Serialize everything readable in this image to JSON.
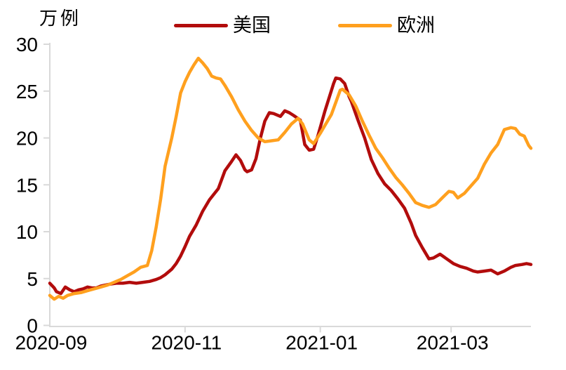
{
  "chart_data": {
    "type": "line",
    "title": "",
    "ylabel": "万例",
    "xlabel": "",
    "grid": false,
    "legend_position": "top",
    "axis_color": "#D9D9D9",
    "text_color": "#000000",
    "background_color": "#FFFFFF",
    "x_unit": "days since 2020-09-01",
    "xlim": [
      0,
      217
    ],
    "ylim": [
      0,
      30
    ],
    "y_ticks": [
      0,
      5,
      10,
      15,
      20,
      25,
      30
    ],
    "x_ticks": [
      {
        "day": 0,
        "label": "2020-09"
      },
      {
        "day": 61,
        "label": "2020-11"
      },
      {
        "day": 122,
        "label": "2021-01"
      },
      {
        "day": 181,
        "label": "2021-03"
      }
    ],
    "series": [
      {
        "name": "美国",
        "color": "#B20C0C",
        "points": [
          [
            0,
            4.5
          ],
          [
            2,
            4.0
          ],
          [
            3,
            3.6
          ],
          [
            5,
            3.4
          ],
          [
            7,
            4.1
          ],
          [
            9,
            3.8
          ],
          [
            11,
            3.6
          ],
          [
            13,
            3.8
          ],
          [
            15,
            3.9
          ],
          [
            17,
            4.1
          ],
          [
            19,
            4.0
          ],
          [
            21,
            4.0
          ],
          [
            23,
            4.2
          ],
          [
            25,
            4.3
          ],
          [
            27,
            4.4
          ],
          [
            30,
            4.5
          ],
          [
            33,
            4.5
          ],
          [
            36,
            4.6
          ],
          [
            39,
            4.5
          ],
          [
            42,
            4.6
          ],
          [
            45,
            4.7
          ],
          [
            48,
            4.9
          ],
          [
            50,
            5.1
          ],
          [
            52,
            5.4
          ],
          [
            55,
            6.0
          ],
          [
            57,
            6.6
          ],
          [
            59,
            7.4
          ],
          [
            61,
            8.4
          ],
          [
            63,
            9.5
          ],
          [
            66,
            10.7
          ],
          [
            69,
            12.2
          ],
          [
            72,
            13.4
          ],
          [
            76,
            14.6
          ],
          [
            79,
            16.5
          ],
          [
            82,
            17.5
          ],
          [
            84,
            18.2
          ],
          [
            86,
            17.6
          ],
          [
            88,
            16.6
          ],
          [
            89,
            16.4
          ],
          [
            91,
            16.6
          ],
          [
            93,
            17.8
          ],
          [
            95,
            20.0
          ],
          [
            97,
            21.8
          ],
          [
            99,
            22.7
          ],
          [
            101,
            22.6
          ],
          [
            104,
            22.3
          ],
          [
            106,
            22.9
          ],
          [
            108,
            22.7
          ],
          [
            110,
            22.4
          ],
          [
            113,
            21.9
          ],
          [
            115,
            19.3
          ],
          [
            117,
            18.7
          ],
          [
            119,
            18.8
          ],
          [
            121,
            20.3
          ],
          [
            124,
            22.8
          ],
          [
            126,
            24.3
          ],
          [
            128,
            25.8
          ],
          [
            129,
            26.4
          ],
          [
            131,
            26.3
          ],
          [
            133,
            25.8
          ],
          [
            135,
            24.4
          ],
          [
            136,
            23.9
          ],
          [
            139,
            21.9
          ],
          [
            142,
            20.0
          ],
          [
            145,
            17.7
          ],
          [
            148,
            16.2
          ],
          [
            151,
            15.1
          ],
          [
            154,
            14.4
          ],
          [
            157,
            13.5
          ],
          [
            160,
            12.5
          ],
          [
            163,
            10.9
          ],
          [
            165,
            9.6
          ],
          [
            168,
            8.3
          ],
          [
            171,
            7.1
          ],
          [
            173,
            7.2
          ],
          [
            176,
            7.6
          ],
          [
            179,
            7.1
          ],
          [
            182,
            6.6
          ],
          [
            185,
            6.3
          ],
          [
            188,
            6.1
          ],
          [
            191,
            5.8
          ],
          [
            193,
            5.7
          ],
          [
            196,
            5.8
          ],
          [
            199,
            5.9
          ],
          [
            202,
            5.5
          ],
          [
            205,
            5.8
          ],
          [
            208,
            6.2
          ],
          [
            210,
            6.4
          ],
          [
            213,
            6.5
          ],
          [
            215,
            6.6
          ],
          [
            217,
            6.5
          ]
        ]
      },
      {
        "name": "欧洲",
        "color": "#FFA01E",
        "points": [
          [
            0,
            3.2
          ],
          [
            2,
            2.8
          ],
          [
            4,
            3.1
          ],
          [
            6,
            2.9
          ],
          [
            8,
            3.2
          ],
          [
            11,
            3.4
          ],
          [
            14,
            3.5
          ],
          [
            17,
            3.7
          ],
          [
            20,
            3.9
          ],
          [
            23,
            4.1
          ],
          [
            26,
            4.3
          ],
          [
            29,
            4.6
          ],
          [
            32,
            4.9
          ],
          [
            35,
            5.3
          ],
          [
            38,
            5.7
          ],
          [
            41,
            6.2
          ],
          [
            44,
            6.4
          ],
          [
            46,
            8.0
          ],
          [
            48,
            10.5
          ],
          [
            50,
            13.5
          ],
          [
            52,
            17.0
          ],
          [
            55,
            20.0
          ],
          [
            57,
            22.3
          ],
          [
            59,
            24.8
          ],
          [
            61,
            26.0
          ],
          [
            63,
            27.0
          ],
          [
            65,
            27.8
          ],
          [
            67,
            28.5
          ],
          [
            69,
            28.0
          ],
          [
            71,
            27.4
          ],
          [
            73,
            26.6
          ],
          [
            75,
            26.4
          ],
          [
            77,
            26.3
          ],
          [
            79,
            25.6
          ],
          [
            82,
            24.4
          ],
          [
            85,
            23.0
          ],
          [
            88,
            21.8
          ],
          [
            91,
            20.8
          ],
          [
            94,
            20.0
          ],
          [
            97,
            19.6
          ],
          [
            100,
            19.7
          ],
          [
            103,
            19.8
          ],
          [
            106,
            20.6
          ],
          [
            109,
            21.5
          ],
          [
            112,
            22.1
          ],
          [
            114,
            21.5
          ],
          [
            117,
            19.8
          ],
          [
            119,
            19.4
          ],
          [
            122,
            20.5
          ],
          [
            124,
            21.3
          ],
          [
            127,
            22.5
          ],
          [
            129,
            23.8
          ],
          [
            131,
            25.1
          ],
          [
            132,
            25.2
          ],
          [
            135,
            24.6
          ],
          [
            138,
            23.4
          ],
          [
            141,
            21.8
          ],
          [
            144,
            20.3
          ],
          [
            147,
            18.9
          ],
          [
            150,
            17.9
          ],
          [
            153,
            16.8
          ],
          [
            156,
            15.8
          ],
          [
            159,
            15.0
          ],
          [
            162,
            14.1
          ],
          [
            165,
            13.1
          ],
          [
            168,
            12.8
          ],
          [
            171,
            12.6
          ],
          [
            174,
            12.9
          ],
          [
            177,
            13.6
          ],
          [
            180,
            14.3
          ],
          [
            182,
            14.2
          ],
          [
            184,
            13.6
          ],
          [
            187,
            14.1
          ],
          [
            190,
            14.9
          ],
          [
            193,
            15.7
          ],
          [
            196,
            17.2
          ],
          [
            199,
            18.4
          ],
          [
            202,
            19.3
          ],
          [
            205,
            20.9
          ],
          [
            208,
            21.1
          ],
          [
            210,
            21.0
          ],
          [
            212,
            20.4
          ],
          [
            214,
            20.2
          ],
          [
            216,
            19.2
          ],
          [
            217,
            18.9
          ]
        ]
      }
    ]
  }
}
